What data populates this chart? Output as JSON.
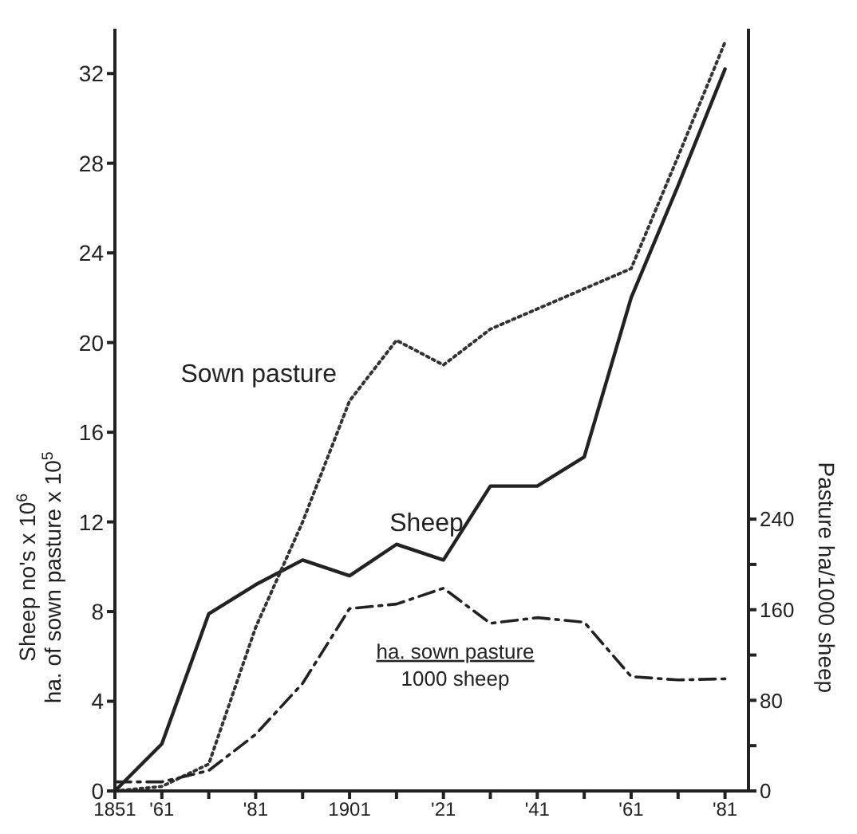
{
  "chart_data": {
    "type": "line",
    "ylabel": "Sheep no's x 10$^{6}$\nha. of sown pasture x 10$^{5}$",
    "y2label": "Pasture ha/1000 sheep",
    "x": [
      1851,
      1861,
      1871,
      1881,
      1891,
      1901,
      1911,
      1921,
      1931,
      1941,
      1951,
      1961,
      1971,
      1981
    ],
    "series": [
      {
        "name": "Sheep",
        "color": "#222222",
        "line_style": "solid",
        "values": [
          0,
          2.1,
          7.9,
          9.2,
          10.3,
          9.6,
          11.0,
          10.3,
          13.6,
          13.6,
          14.9,
          22,
          27,
          32.2
        ]
      },
      {
        "name": "Sown pasture",
        "color": "#333333",
        "line_style": "dotted",
        "values": [
          0,
          0.2,
          1.2,
          7.3,
          12,
          17.4,
          20.1,
          19,
          20.6,
          21.5,
          22.4,
          23.3,
          28.3,
          33.4
        ]
      },
      {
        "name": "ha. sown pasture\n1000 sheep",
        "color": "#222222",
        "line_style": "dashed",
        "axis": "y2",
        "values": [
          8,
          8,
          18,
          50,
          95,
          161,
          165,
          179,
          148,
          153,
          149,
          101,
          98,
          99
        ]
      }
    ],
    "xlim": [
      1851,
      1986
    ],
    "xticks": [
      1851,
      {
        "value": 1861,
        "label": "'61"
      },
      {
        "value": 1871,
        "label": null
      },
      {
        "value": 1881,
        "label": "'81"
      },
      {
        "value": 1891,
        "label": null
      },
      1901,
      {
        "value": 1911,
        "label": null
      },
      {
        "value": 1921,
        "label": "'21"
      },
      {
        "value": 1931,
        "label": null
      },
      {
        "value": 1941,
        "label": "'41"
      },
      {
        "value": 1951,
        "label": null
      },
      {
        "value": 1961,
        "label": "'61"
      },
      {
        "value": 1971,
        "label": null
      },
      {
        "value": 1981,
        "label": "'81"
      }
    ],
    "ylim": [
      0,
      34
    ],
    "yticks": [
      0,
      4,
      8,
      12,
      16,
      20,
      24,
      28,
      32
    ],
    "y2lim": [
      0,
      673
    ],
    "y2ticks": [
      0,
      {
        "value": 40,
        "label": null
      },
      80,
      {
        "value": 120,
        "label": null
      },
      160,
      {
        "value": 200,
        "label": null
      },
      240
    ],
    "marker": "none"
  }
}
